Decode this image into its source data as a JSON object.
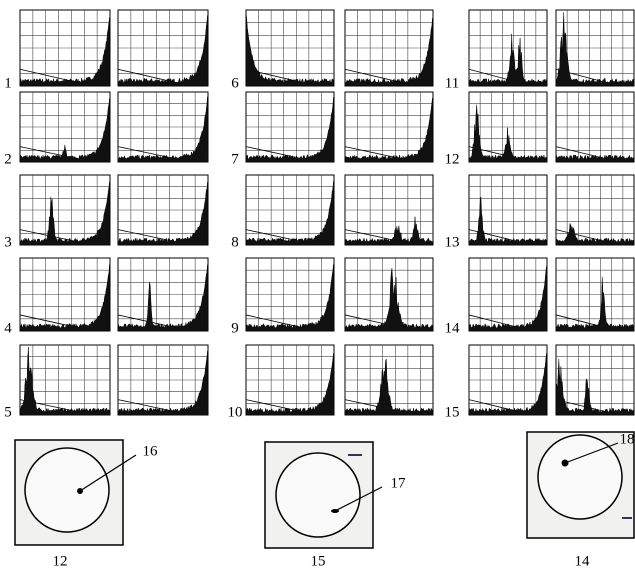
{
  "panels": [
    "1",
    "2",
    "3",
    "4",
    "5",
    "6",
    "7",
    "8",
    "9",
    "10",
    "11",
    "12",
    "13",
    "14",
    "15"
  ],
  "photos": [
    {
      "label": "12",
      "callout": "16"
    },
    {
      "label": "15",
      "callout": "17"
    },
    {
      "label": "14",
      "callout": "18"
    }
  ]
}
